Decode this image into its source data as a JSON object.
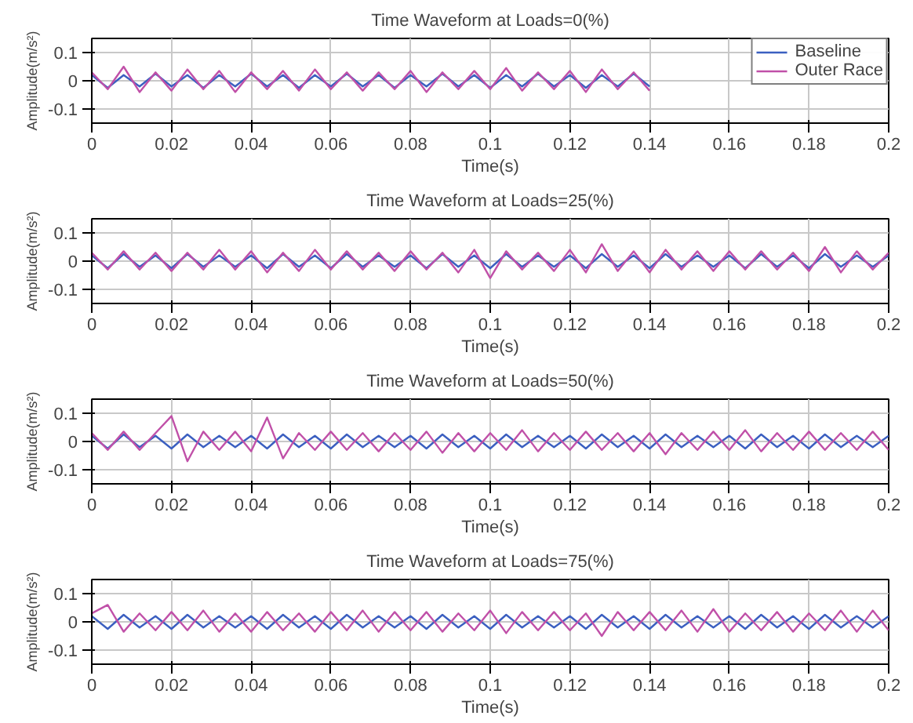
{
  "chart_data": [
    {
      "type": "line",
      "title": "Time Waveform at Loads=0(%)",
      "xlabel": "Time(s)",
      "ylabel": "Amplitude(m/s²)",
      "x": [
        0,
        0.004,
        0.008,
        0.012,
        0.016,
        0.02,
        0.024,
        0.028,
        0.032,
        0.036,
        0.04,
        0.044,
        0.048,
        0.052,
        0.056,
        0.06,
        0.064,
        0.068,
        0.072,
        0.076,
        0.08,
        0.084,
        0.088,
        0.092,
        0.096,
        0.1,
        0.104,
        0.108,
        0.112,
        0.116,
        0.12,
        0.124,
        0.128,
        0.132,
        0.136,
        0.14
      ],
      "xlim": [
        0,
        0.2
      ],
      "xticks": [
        0,
        0.02,
        0.04,
        0.06,
        0.08,
        0.1,
        0.12,
        0.14,
        0.16,
        0.18,
        0.2
      ],
      "ylim": [
        -0.15,
        0.15
      ],
      "yticks": [
        -0.1,
        0,
        0.1
      ],
      "grid": true,
      "legend": "top right",
      "series": [
        {
          "name": "Baseline",
          "color": "#3b5fc0",
          "values": [
            0.02,
            -0.025,
            0.02,
            -0.02,
            0.025,
            -0.02,
            0.02,
            -0.025,
            0.02,
            -0.02,
            0.025,
            -0.02,
            0.02,
            -0.025,
            0.02,
            -0.02,
            0.025,
            -0.02,
            0.02,
            -0.025,
            0.02,
            -0.02,
            0.025,
            -0.02,
            0.02,
            -0.025,
            0.02,
            -0.02,
            0.025,
            -0.02,
            0.02,
            -0.025,
            0.02,
            -0.02,
            0.025,
            -0.02
          ]
        },
        {
          "name": "Outer Race",
          "color": "#c050a8",
          "values": [
            0.03,
            -0.03,
            0.05,
            -0.04,
            0.03,
            -0.035,
            0.04,
            -0.03,
            0.035,
            -0.04,
            0.03,
            -0.03,
            0.035,
            -0.035,
            0.04,
            -0.03,
            0.03,
            -0.035,
            0.03,
            -0.03,
            0.035,
            -0.04,
            0.03,
            -0.03,
            0.035,
            -0.03,
            0.045,
            -0.035,
            0.03,
            -0.03,
            0.035,
            -0.04,
            0.04,
            -0.03,
            0.03,
            -0.035
          ]
        }
      ]
    },
    {
      "type": "line",
      "title": "Time Waveform at Loads=25(%)",
      "xlabel": "Time(s)",
      "ylabel": "Amplitude(m/s²)",
      "x": [
        0,
        0.004,
        0.008,
        0.012,
        0.016,
        0.02,
        0.024,
        0.028,
        0.032,
        0.036,
        0.04,
        0.044,
        0.048,
        0.052,
        0.056,
        0.06,
        0.064,
        0.068,
        0.072,
        0.076,
        0.08,
        0.084,
        0.088,
        0.092,
        0.096,
        0.1,
        0.104,
        0.108,
        0.112,
        0.116,
        0.12,
        0.124,
        0.128,
        0.132,
        0.136,
        0.14,
        0.144,
        0.148,
        0.152,
        0.156,
        0.16,
        0.164,
        0.168,
        0.172,
        0.176,
        0.18,
        0.184,
        0.188,
        0.192,
        0.196,
        0.2
      ],
      "xlim": [
        0,
        0.2
      ],
      "xticks": [
        0,
        0.02,
        0.04,
        0.06,
        0.08,
        0.1,
        0.12,
        0.14,
        0.16,
        0.18,
        0.2
      ],
      "ylim": [
        -0.15,
        0.15
      ],
      "yticks": [
        -0.1,
        0,
        0.1
      ],
      "grid": true,
      "series": [
        {
          "color": "#3b5fc0",
          "values": [
            0.02,
            -0.025,
            0.025,
            -0.02,
            0.02,
            -0.025,
            0.025,
            -0.02,
            0.02,
            -0.02,
            0.02,
            -0.025,
            0.025,
            -0.02,
            0.02,
            -0.025,
            0.025,
            -0.02,
            0.02,
            -0.02,
            0.02,
            -0.025,
            0.025,
            -0.02,
            0.02,
            -0.025,
            0.025,
            -0.02,
            0.02,
            -0.02,
            0.02,
            -0.025,
            0.025,
            -0.02,
            0.02,
            -0.025,
            0.025,
            -0.02,
            0.02,
            -0.02,
            0.02,
            -0.025,
            0.025,
            -0.02,
            0.02,
            -0.025,
            0.025,
            -0.02,
            0.02,
            -0.02,
            0.02
          ]
        },
        {
          "color": "#c050a8",
          "values": [
            0.03,
            -0.03,
            0.035,
            -0.03,
            0.03,
            -0.035,
            0.03,
            -0.03,
            0.04,
            -0.03,
            0.035,
            -0.04,
            0.03,
            -0.035,
            0.04,
            -0.03,
            0.035,
            -0.03,
            0.03,
            -0.035,
            0.035,
            -0.03,
            0.03,
            -0.04,
            0.04,
            -0.06,
            0.035,
            -0.03,
            0.03,
            -0.035,
            0.04,
            -0.04,
            0.06,
            -0.035,
            0.035,
            -0.04,
            0.04,
            -0.03,
            0.035,
            -0.035,
            0.035,
            -0.03,
            0.035,
            -0.03,
            0.03,
            -0.035,
            0.05,
            -0.04,
            0.035,
            -0.03,
            0.03
          ]
        }
      ]
    },
    {
      "type": "line",
      "title": "Time Waveform at Loads=50(%)",
      "xlabel": "Time(s)",
      "ylabel": "Amplitude(m/s²)",
      "x": [
        0,
        0.004,
        0.008,
        0.012,
        0.016,
        0.02,
        0.024,
        0.028,
        0.032,
        0.036,
        0.04,
        0.044,
        0.048,
        0.052,
        0.056,
        0.06,
        0.064,
        0.068,
        0.072,
        0.076,
        0.08,
        0.084,
        0.088,
        0.092,
        0.096,
        0.1,
        0.104,
        0.108,
        0.112,
        0.116,
        0.12,
        0.124,
        0.128,
        0.132,
        0.136,
        0.14,
        0.144,
        0.148,
        0.152,
        0.156,
        0.16,
        0.164,
        0.168,
        0.172,
        0.176,
        0.18,
        0.184,
        0.188,
        0.192,
        0.196,
        0.2
      ],
      "xlim": [
        0,
        0.2
      ],
      "xticks": [
        0,
        0.02,
        0.04,
        0.06,
        0.08,
        0.1,
        0.12,
        0.14,
        0.16,
        0.18,
        0.2
      ],
      "ylim": [
        -0.15,
        0.15
      ],
      "yticks": [
        -0.1,
        0,
        0.1
      ],
      "grid": true,
      "series": [
        {
          "color": "#3b5fc0",
          "values": [
            0.02,
            -0.025,
            0.025,
            -0.02,
            0.02,
            -0.025,
            0.025,
            -0.02,
            0.02,
            -0.02,
            0.02,
            -0.025,
            0.025,
            -0.02,
            0.02,
            -0.025,
            0.025,
            -0.02,
            0.02,
            -0.02,
            0.02,
            -0.025,
            0.025,
            -0.02,
            0.02,
            -0.025,
            0.025,
            -0.02,
            0.02,
            -0.02,
            0.02,
            -0.025,
            0.025,
            -0.02,
            0.02,
            -0.025,
            0.025,
            -0.02,
            0.02,
            -0.02,
            0.02,
            -0.025,
            0.025,
            -0.02,
            0.02,
            -0.025,
            0.025,
            -0.02,
            0.02,
            -0.02,
            0.02
          ]
        },
        {
          "color": "#c050a8",
          "values": [
            0.03,
            -0.03,
            0.035,
            -0.03,
            0.03,
            0.09,
            -0.07,
            0.035,
            -0.03,
            0.035,
            -0.035,
            0.085,
            -0.06,
            0.03,
            -0.03,
            0.035,
            -0.03,
            0.03,
            -0.035,
            0.03,
            -0.03,
            0.035,
            -0.04,
            0.03,
            -0.035,
            0.03,
            -0.03,
            0.04,
            -0.035,
            0.03,
            -0.03,
            0.035,
            -0.03,
            0.03,
            -0.035,
            0.03,
            -0.045,
            0.03,
            -0.03,
            0.035,
            -0.03,
            0.04,
            -0.035,
            0.03,
            -0.03,
            0.035,
            -0.03,
            0.03,
            -0.03,
            0.035,
            -0.03
          ]
        }
      ]
    },
    {
      "type": "line",
      "title": "Time Waveform at Loads=75(%)",
      "xlabel": "Time(s)",
      "ylabel": "Amplitude(m/s²)",
      "x": [
        0,
        0.004,
        0.008,
        0.012,
        0.016,
        0.02,
        0.024,
        0.028,
        0.032,
        0.036,
        0.04,
        0.044,
        0.048,
        0.052,
        0.056,
        0.06,
        0.064,
        0.068,
        0.072,
        0.076,
        0.08,
        0.084,
        0.088,
        0.092,
        0.096,
        0.1,
        0.104,
        0.108,
        0.112,
        0.116,
        0.12,
        0.124,
        0.128,
        0.132,
        0.136,
        0.14,
        0.144,
        0.148,
        0.152,
        0.156,
        0.16,
        0.164,
        0.168,
        0.172,
        0.176,
        0.18,
        0.184,
        0.188,
        0.192,
        0.196,
        0.2
      ],
      "xlim": [
        0,
        0.2
      ],
      "xticks": [
        0,
        0.02,
        0.04,
        0.06,
        0.08,
        0.1,
        0.12,
        0.14,
        0.16,
        0.18,
        0.2
      ],
      "ylim": [
        -0.15,
        0.15
      ],
      "yticks": [
        -0.1,
        0,
        0.1
      ],
      "grid": true,
      "series": [
        {
          "color": "#3b5fc0",
          "values": [
            0.02,
            -0.025,
            0.025,
            -0.02,
            0.02,
            -0.025,
            0.025,
            -0.02,
            0.02,
            -0.02,
            0.02,
            -0.025,
            0.025,
            -0.02,
            0.02,
            -0.025,
            0.025,
            -0.02,
            0.02,
            -0.02,
            0.02,
            -0.025,
            0.025,
            -0.02,
            0.02,
            -0.025,
            0.025,
            -0.02,
            0.02,
            -0.02,
            0.02,
            -0.025,
            0.025,
            -0.02,
            0.02,
            -0.025,
            0.025,
            -0.02,
            0.02,
            -0.02,
            0.02,
            -0.025,
            0.025,
            -0.02,
            0.02,
            -0.025,
            0.025,
            -0.02,
            0.02,
            -0.02,
            0.02
          ]
        },
        {
          "color": "#c050a8",
          "values": [
            0.03,
            0.06,
            -0.035,
            0.03,
            -0.03,
            0.035,
            -0.03,
            0.04,
            -0.035,
            0.03,
            -0.035,
            0.035,
            -0.03,
            0.03,
            -0.035,
            0.035,
            -0.03,
            0.04,
            -0.035,
            0.035,
            -0.03,
            0.035,
            -0.035,
            0.03,
            -0.03,
            0.04,
            -0.04,
            0.035,
            -0.03,
            0.035,
            -0.03,
            0.03,
            -0.05,
            0.035,
            -0.03,
            0.035,
            -0.03,
            0.04,
            -0.035,
            0.045,
            -0.035,
            0.03,
            -0.03,
            0.035,
            -0.035,
            0.03,
            -0.03,
            0.04,
            -0.035,
            0.04,
            -0.03
          ]
        }
      ]
    }
  ]
}
